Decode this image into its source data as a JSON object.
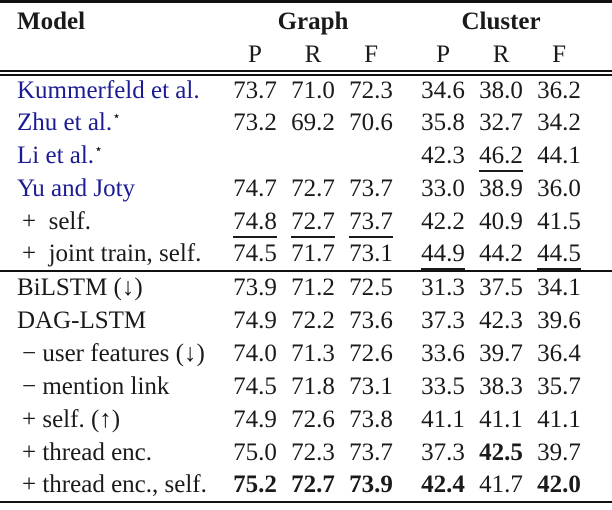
{
  "colors": {
    "link_blue": "#1b1b94",
    "text": "#1a1a1a",
    "rule": "#111111",
    "background": "#ffffff"
  },
  "header": {
    "model_label": "Model",
    "group_graph": "Graph",
    "group_cluster": "Cluster",
    "subheaders": [
      "P",
      "R",
      "F",
      "P",
      "R",
      "F"
    ]
  },
  "chart_data": {
    "type": "table",
    "title": "",
    "column_groups": [
      "Graph",
      "Cluster"
    ],
    "columns": [
      "Model",
      "Graph P",
      "Graph R",
      "Graph F",
      "Cluster P",
      "Cluster R",
      "Cluster F"
    ]
  },
  "rows": [
    {
      "model": "Kummerfeld et al.",
      "sup": "",
      "link": true,
      "indent": false,
      "rule_below": false,
      "values": [
        "73.7",
        "71.0",
        "72.3",
        "34.6",
        "38.0",
        "36.2"
      ],
      "styles": [
        "",
        "",
        "",
        "",
        "",
        ""
      ]
    },
    {
      "model": "Zhu et al.",
      "sup": "⋆",
      "link": true,
      "indent": false,
      "rule_below": false,
      "values": [
        "73.2",
        "69.2",
        "70.6",
        "35.8",
        "32.7",
        "34.2"
      ],
      "styles": [
        "",
        "",
        "",
        "",
        "",
        ""
      ]
    },
    {
      "model": "Li et al.",
      "sup": "⋆",
      "link": true,
      "indent": false,
      "rule_below": false,
      "values": [
        "",
        "",
        "",
        "42.3",
        "46.2",
        "44.1"
      ],
      "styles": [
        "",
        "",
        "",
        "",
        "u",
        ""
      ]
    },
    {
      "model": "Yu and Joty",
      "sup": "",
      "link": true,
      "indent": false,
      "rule_below": false,
      "values": [
        "74.7",
        "72.7",
        "73.7",
        "33.0",
        "38.9",
        "36.0"
      ],
      "styles": [
        "",
        "",
        "",
        "",
        "",
        ""
      ]
    },
    {
      "model": "+  self.",
      "sup": "",
      "link": false,
      "indent": true,
      "rule_below": false,
      "values": [
        "74.8",
        "72.7",
        "73.7",
        "42.2",
        "40.9",
        "41.5"
      ],
      "styles": [
        "u",
        "u",
        "u",
        "",
        "",
        ""
      ]
    },
    {
      "model": "+  joint train, self.",
      "sup": "",
      "link": false,
      "indent": true,
      "rule_below": true,
      "values": [
        "74.5",
        "71.7",
        "73.1",
        "44.9",
        "44.2",
        "44.5"
      ],
      "styles": [
        "",
        "",
        "",
        "u",
        "",
        "u"
      ]
    },
    {
      "model": "BiLSTM (↓)",
      "sup": "",
      "link": false,
      "indent": false,
      "rule_below": false,
      "values": [
        "73.9",
        "71.2",
        "72.5",
        "31.3",
        "37.5",
        "34.1"
      ],
      "styles": [
        "",
        "",
        "",
        "",
        "",
        ""
      ]
    },
    {
      "model": "DAG-LSTM",
      "sup": "",
      "link": false,
      "indent": false,
      "rule_below": false,
      "values": [
        "74.9",
        "72.2",
        "73.6",
        "37.3",
        "42.3",
        "39.6"
      ],
      "styles": [
        "",
        "",
        "",
        "",
        "",
        ""
      ]
    },
    {
      "model": "− user features (↓)",
      "sup": "",
      "link": false,
      "indent": true,
      "rule_below": false,
      "values": [
        "74.0",
        "71.3",
        "72.6",
        "33.6",
        "39.7",
        "36.4"
      ],
      "styles": [
        "",
        "",
        "",
        "",
        "",
        ""
      ]
    },
    {
      "model": "− mention link",
      "sup": "",
      "link": false,
      "indent": true,
      "rule_below": false,
      "values": [
        "74.5",
        "71.8",
        "73.1",
        "33.5",
        "38.3",
        "35.7"
      ],
      "styles": [
        "",
        "",
        "",
        "",
        "",
        ""
      ]
    },
    {
      "model": "+ self. (↑)",
      "sup": "",
      "link": false,
      "indent": true,
      "rule_below": false,
      "values": [
        "74.9",
        "72.6",
        "73.8",
        "41.1",
        "41.1",
        "41.1"
      ],
      "styles": [
        "",
        "",
        "",
        "",
        "",
        ""
      ]
    },
    {
      "model": "+ thread enc.",
      "sup": "",
      "link": false,
      "indent": true,
      "rule_below": false,
      "values": [
        "75.0",
        "72.3",
        "73.7",
        "37.3",
        "42.5",
        "39.7"
      ],
      "styles": [
        "",
        "",
        "",
        "",
        "b",
        ""
      ]
    },
    {
      "model": "+ thread enc., self.",
      "sup": "",
      "link": false,
      "indent": true,
      "rule_below": false,
      "values": [
        "75.2",
        "72.7",
        "73.9",
        "42.4",
        "41.7",
        "42.0"
      ],
      "styles": [
        "b",
        "b",
        "b",
        "b",
        "",
        "b"
      ]
    }
  ]
}
